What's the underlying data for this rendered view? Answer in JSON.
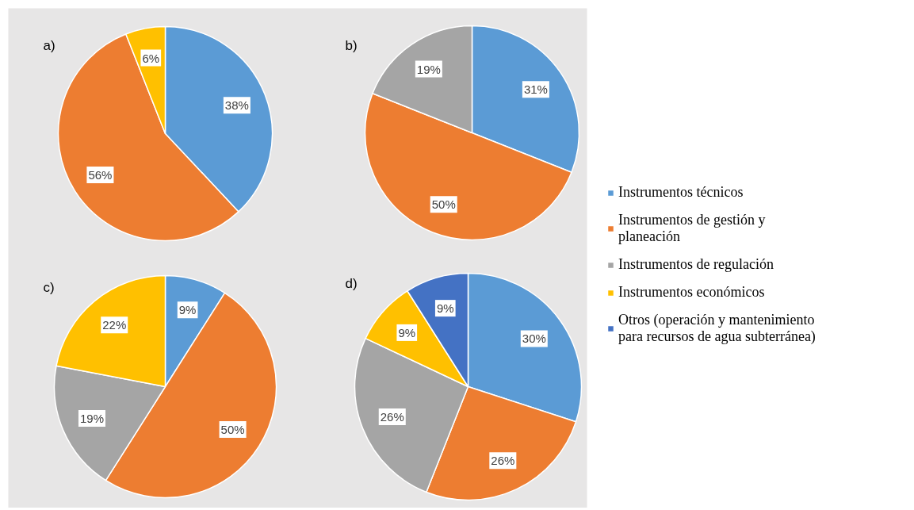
{
  "chart_data": [
    {
      "type": "pie",
      "title": "a)",
      "categories": [
        null,
        null,
        null
      ],
      "values": [
        38,
        56,
        6
      ],
      "colors": [
        "#5b9bd5",
        "#ed7d31",
        "#ffc000"
      ],
      "value_labels": [
        "38%",
        "56%",
        "6%"
      ]
    },
    {
      "type": "pie",
      "title": "b)",
      "categories": [
        null,
        null,
        null
      ],
      "values": [
        31,
        50,
        19
      ],
      "colors": [
        "#5b9bd5",
        "#ed7d31",
        "#a5a5a5"
      ],
      "value_labels": [
        "31%",
        "50%",
        "19%"
      ]
    },
    {
      "type": "pie",
      "title": "c)",
      "categories": [
        null,
        null,
        null,
        null
      ],
      "values": [
        9,
        50,
        19,
        22
      ],
      "colors": [
        "#5b9bd5",
        "#ed7d31",
        "#a5a5a5",
        "#ffc000"
      ],
      "value_labels": [
        "9%",
        "50%",
        "19%",
        "22%"
      ]
    },
    {
      "type": "pie",
      "title": "d)",
      "categories": [
        "Instrumentos técnicos",
        "Instrumentos de gestión y planeación",
        "Instrumentos de regulación",
        "Instrumentos económicos",
        "Otros (operación y mantenimiento para recursos de agua subterránea)"
      ],
      "values": [
        30,
        26,
        26,
        9,
        9
      ],
      "colors": [
        "#5b9bd5",
        "#ed7d31",
        "#a5a5a5",
        "#ffc000",
        "#4472c4"
      ],
      "value_labels": [
        "30%",
        "26%",
        "26%",
        "9%",
        "9%"
      ],
      "legend": "right"
    }
  ]
}
